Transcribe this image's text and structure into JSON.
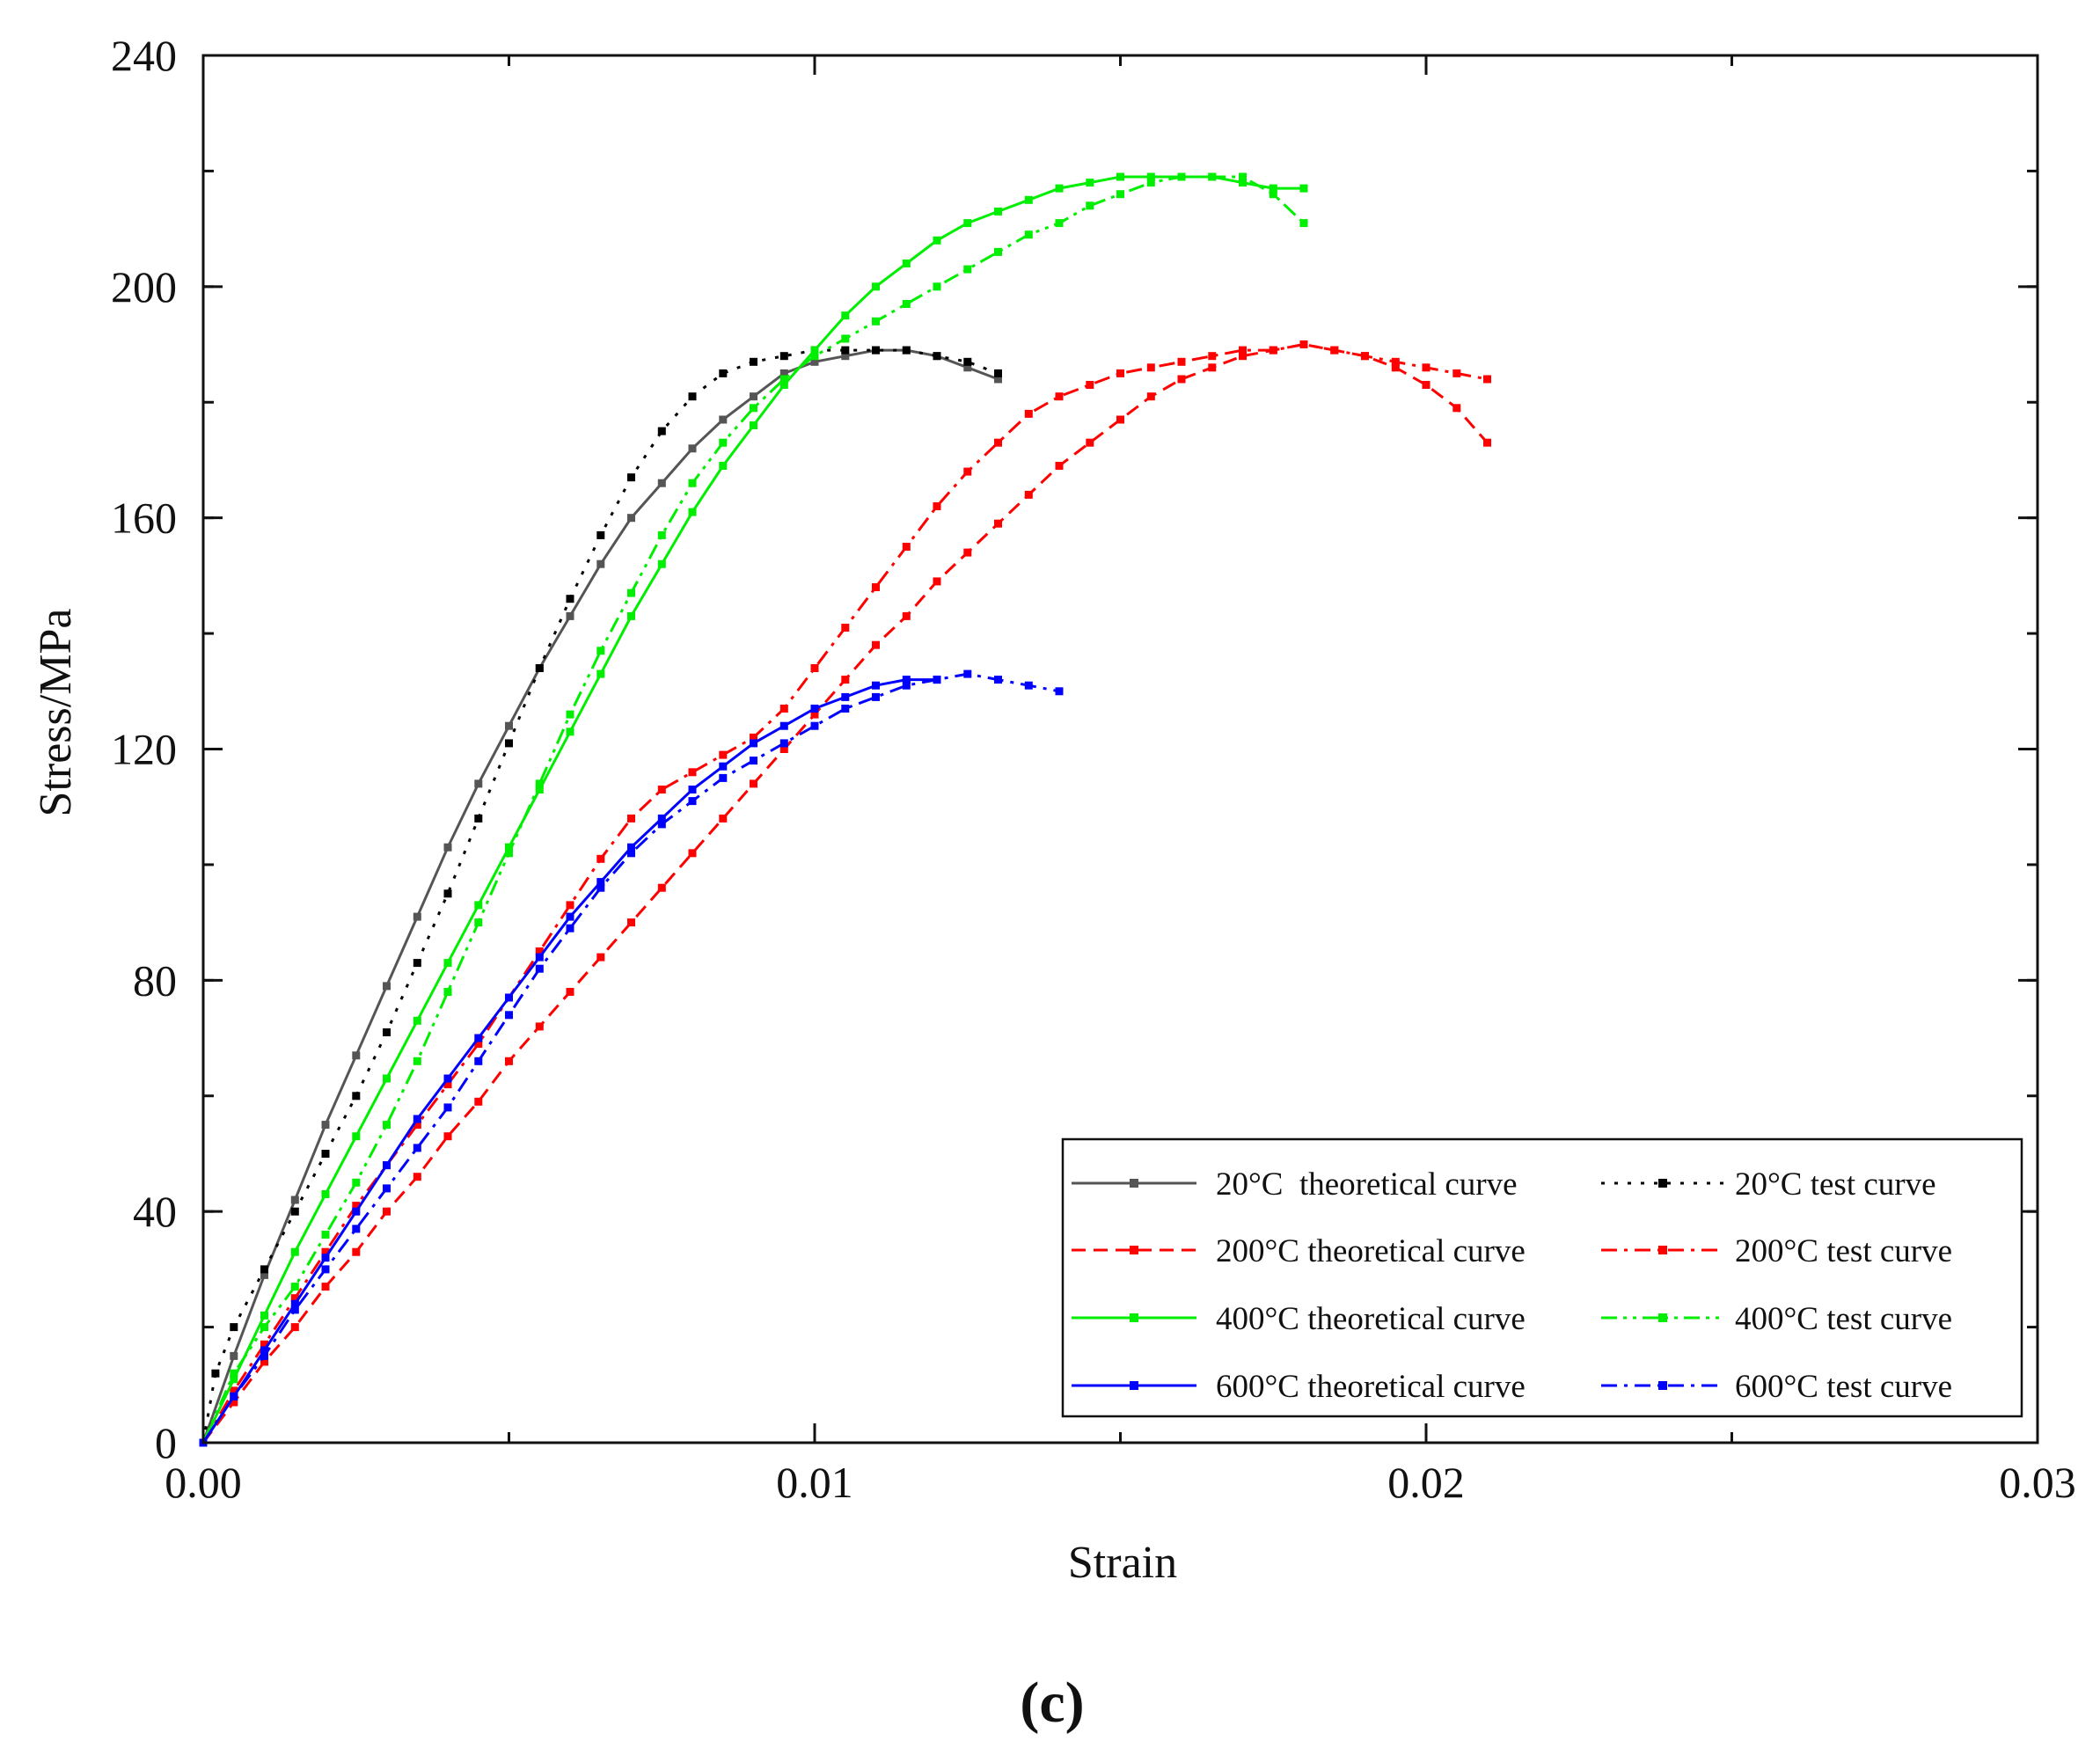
{
  "chart_data": {
    "type": "line",
    "title": "",
    "caption": "(c)",
    "xlabel": "Strain",
    "ylabel": "Stress/MPa",
    "xlim": [
      0,
      0.03
    ],
    "ylim": [
      0,
      240
    ],
    "xticks": [
      0,
      0.01,
      0.02,
      0.03
    ],
    "xtick_labels": [
      "0.00",
      "0.01",
      "0.02",
      "0.03"
    ],
    "yticks": [
      0,
      40,
      80,
      120,
      160,
      200,
      240
    ],
    "ytick_labels": [
      "0",
      "40",
      "80",
      "120",
      "160",
      "200",
      "240"
    ],
    "x_minor_step": 0.005,
    "y_minor_step": 20,
    "grid": false,
    "legend_position": "bottom-right",
    "series": [
      {
        "name": "20°C  theoretical curve",
        "color": "#555555",
        "dash": "solid",
        "marker_every": 1,
        "x": [
          0,
          0.0005,
          0.001,
          0.0015,
          0.002,
          0.0025,
          0.003,
          0.0035,
          0.004,
          0.0045,
          0.005,
          0.0055,
          0.006,
          0.0065,
          0.007,
          0.0075,
          0.008,
          0.0085,
          0.009,
          0.0095,
          0.01,
          0.0105,
          0.011,
          0.0115,
          0.012,
          0.0125,
          0.013
        ],
        "y": [
          0,
          15,
          29,
          42,
          55,
          67,
          79,
          91,
          103,
          114,
          124,
          134,
          143,
          152,
          160,
          166,
          172,
          177,
          181,
          185,
          187,
          188,
          189,
          189,
          188,
          186,
          184
        ]
      },
      {
        "name": "20°C test curve",
        "color": "#000000",
        "dash": "dot",
        "marker_every": 1,
        "x": [
          0,
          0.0002,
          0.0005,
          0.001,
          0.0015,
          0.002,
          0.0025,
          0.003,
          0.0035,
          0.004,
          0.0045,
          0.005,
          0.0055,
          0.006,
          0.0065,
          0.007,
          0.0075,
          0.008,
          0.0085,
          0.009,
          0.0095,
          0.01,
          0.0105,
          0.011,
          0.0115,
          0.012,
          0.0125,
          0.013
        ],
        "y": [
          0,
          12,
          20,
          30,
          40,
          50,
          60,
          71,
          83,
          95,
          108,
          121,
          134,
          146,
          157,
          167,
          175,
          181,
          185,
          187,
          188,
          189,
          189,
          189,
          189,
          188,
          187,
          185
        ]
      },
      {
        "name": "200°C theoretical curve",
        "color": "#ff0000",
        "dash": "dash",
        "marker_every": 1,
        "x": [
          0,
          0.0005,
          0.001,
          0.0015,
          0.002,
          0.0025,
          0.003,
          0.0035,
          0.004,
          0.0045,
          0.005,
          0.0055,
          0.006,
          0.0065,
          0.007,
          0.0075,
          0.008,
          0.0085,
          0.009,
          0.0095,
          0.01,
          0.0105,
          0.011,
          0.0115,
          0.012,
          0.0125,
          0.013,
          0.0135,
          0.014,
          0.0145,
          0.015,
          0.0155,
          0.016,
          0.0165,
          0.017,
          0.0175,
          0.018,
          0.0185,
          0.019,
          0.0195,
          0.02,
          0.0205,
          0.021
        ],
        "y": [
          0,
          7,
          14,
          20,
          27,
          33,
          40,
          46,
          53,
          59,
          66,
          72,
          78,
          84,
          90,
          96,
          102,
          108,
          114,
          120,
          126,
          132,
          138,
          143,
          149,
          154,
          159,
          164,
          169,
          173,
          177,
          181,
          184,
          186,
          188,
          189,
          190,
          189,
          188,
          186,
          183,
          179,
          173
        ]
      },
      {
        "name": "200°C test curve",
        "color": "#ff0000",
        "dash": "dashdot",
        "marker_every": 1,
        "x": [
          0,
          0.0005,
          0.001,
          0.0015,
          0.002,
          0.0025,
          0.003,
          0.0035,
          0.004,
          0.0045,
          0.005,
          0.0055,
          0.006,
          0.0065,
          0.007,
          0.0075,
          0.008,
          0.0085,
          0.009,
          0.0095,
          0.01,
          0.0105,
          0.011,
          0.0115,
          0.012,
          0.0125,
          0.013,
          0.0135,
          0.014,
          0.0145,
          0.015,
          0.0155,
          0.016,
          0.0165,
          0.017,
          0.0175,
          0.018,
          0.0185,
          0.019,
          0.0195,
          0.02,
          0.0205,
          0.021
        ],
        "y": [
          0,
          9,
          17,
          25,
          33,
          41,
          48,
          55,
          62,
          69,
          77,
          85,
          93,
          101,
          108,
          113,
          116,
          119,
          122,
          127,
          134,
          141,
          148,
          155,
          162,
          168,
          173,
          178,
          181,
          183,
          185,
          186,
          187,
          188,
          189,
          189,
          190,
          189,
          188,
          187,
          186,
          185,
          184
        ]
      },
      {
        "name": "400°C theoretical curve",
        "color": "#00ee00",
        "dash": "solid",
        "marker_every": 1,
        "x": [
          0,
          0.0005,
          0.001,
          0.0015,
          0.002,
          0.0025,
          0.003,
          0.0035,
          0.004,
          0.0045,
          0.005,
          0.0055,
          0.006,
          0.0065,
          0.007,
          0.0075,
          0.008,
          0.0085,
          0.009,
          0.0095,
          0.01,
          0.0105,
          0.011,
          0.0115,
          0.012,
          0.0125,
          0.013,
          0.0135,
          0.014,
          0.0145,
          0.015,
          0.0155,
          0.016,
          0.0165,
          0.017,
          0.0175,
          0.018
        ],
        "y": [
          0,
          11,
          22,
          33,
          43,
          53,
          63,
          73,
          83,
          93,
          103,
          113,
          123,
          133,
          143,
          152,
          161,
          169,
          176,
          183,
          189,
          195,
          200,
          204,
          208,
          211,
          213,
          215,
          217,
          218,
          219,
          219,
          219,
          219,
          218,
          217,
          217
        ]
      },
      {
        "name": "400°C test curve",
        "color": "#00ee00",
        "dash": "dashdotdot",
        "marker_every": 1,
        "x": [
          0,
          0.0005,
          0.001,
          0.0015,
          0.002,
          0.0025,
          0.003,
          0.0035,
          0.004,
          0.0045,
          0.005,
          0.0055,
          0.006,
          0.0065,
          0.007,
          0.0075,
          0.008,
          0.0085,
          0.009,
          0.0095,
          0.01,
          0.0105,
          0.011,
          0.0115,
          0.012,
          0.0125,
          0.013,
          0.0135,
          0.014,
          0.0145,
          0.015,
          0.0155,
          0.016,
          0.0165,
          0.017,
          0.0175,
          0.018
        ],
        "y": [
          0,
          12,
          20,
          27,
          36,
          45,
          55,
          66,
          78,
          90,
          102,
          114,
          126,
          137,
          147,
          157,
          166,
          173,
          179,
          184,
          188,
          191,
          194,
          197,
          200,
          203,
          206,
          209,
          211,
          214,
          216,
          218,
          219,
          219,
          219,
          216,
          211
        ]
      },
      {
        "name": "600°C theoretical curve",
        "color": "#0000ff",
        "dash": "solid",
        "marker_every": 1,
        "x": [
          0,
          0.0005,
          0.001,
          0.0015,
          0.002,
          0.0025,
          0.003,
          0.0035,
          0.004,
          0.0045,
          0.005,
          0.0055,
          0.006,
          0.0065,
          0.007,
          0.0075,
          0.008,
          0.0085,
          0.009,
          0.0095,
          0.01,
          0.0105,
          0.011,
          0.0115,
          0.012
        ],
        "y": [
          0,
          8,
          16,
          24,
          32,
          40,
          48,
          56,
          63,
          70,
          77,
          84,
          91,
          97,
          103,
          108,
          113,
          117,
          121,
          124,
          127,
          129,
          131,
          132,
          132
        ]
      },
      {
        "name": "600°C test curve",
        "color": "#0000ff",
        "dash": "dashdot",
        "marker_every": 1,
        "x": [
          0,
          0.0005,
          0.001,
          0.0015,
          0.002,
          0.0025,
          0.003,
          0.0035,
          0.004,
          0.0045,
          0.005,
          0.0055,
          0.006,
          0.0065,
          0.007,
          0.0075,
          0.008,
          0.0085,
          0.009,
          0.0095,
          0.01,
          0.0105,
          0.011,
          0.0115,
          0.012,
          0.0125,
          0.013,
          0.0135,
          0.014
        ],
        "y": [
          0,
          8,
          15,
          23,
          30,
          37,
          44,
          51,
          58,
          66,
          74,
          82,
          89,
          96,
          102,
          107,
          111,
          115,
          118,
          121,
          124,
          127,
          129,
          131,
          132,
          133,
          132,
          131,
          130
        ]
      }
    ]
  }
}
